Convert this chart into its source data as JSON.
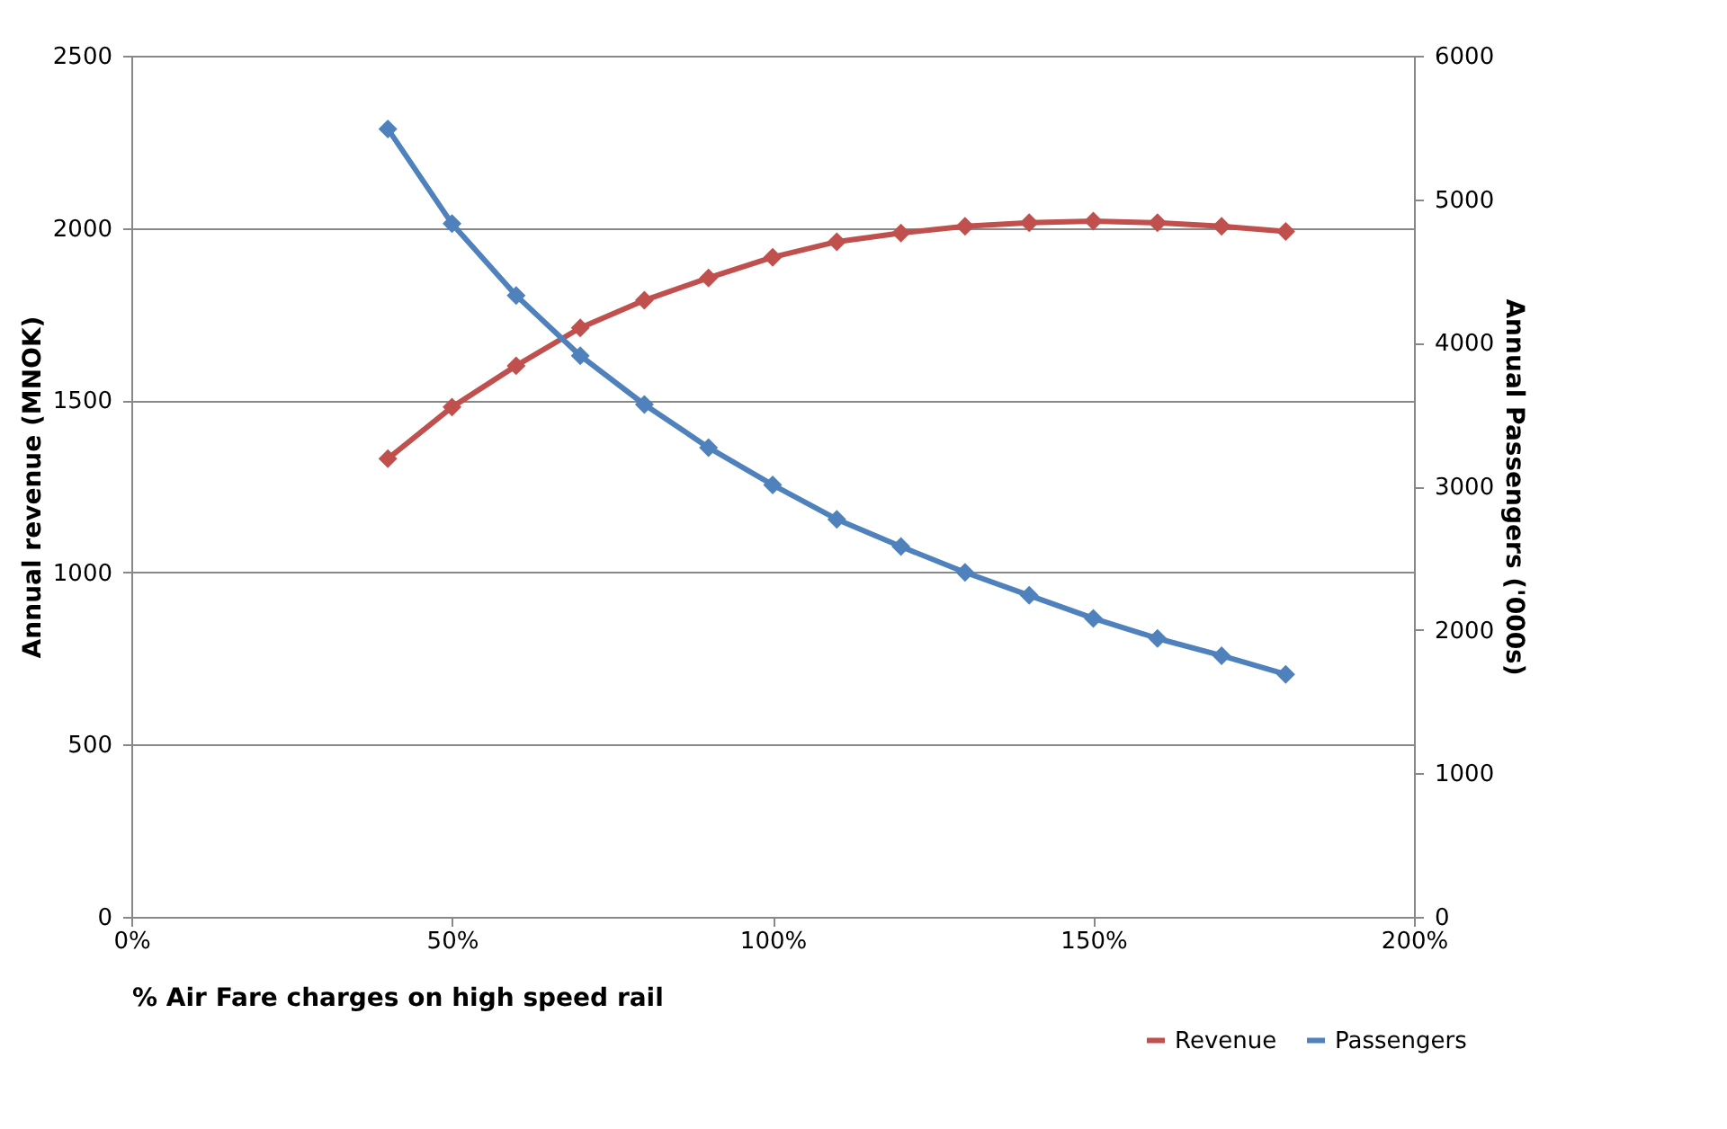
{
  "chart_data": {
    "type": "line",
    "xlabel": "% Air Fare charges on high speed rail",
    "ylabel": "Annual revenue (MNOK)",
    "y2label": "Annual Passengers ('000s)",
    "x": [
      40,
      50,
      60,
      70,
      80,
      90,
      100,
      110,
      120,
      130,
      140,
      150,
      160,
      170,
      180
    ],
    "series": [
      {
        "name": "Revenue",
        "color": "#c0504d",
        "values": [
          1330,
          1480,
          1600,
          1710,
          1790,
          1855,
          1915,
          1960,
          1985,
          2005,
          2015,
          2020,
          2015,
          2005,
          1990
        ]
      },
      {
        "name": "Passengers",
        "color": "#4f81bd",
        "axis": "y2",
        "values": [
          5490,
          4830,
          4330,
          3910,
          3570,
          3270,
          3010,
          2770,
          2580,
          2400,
          2240,
          2080,
          1940,
          1820,
          1690
        ]
      }
    ],
    "xlim": [
      0,
      200
    ],
    "xticks": [
      {
        "value": 0,
        "label": "0%"
      },
      {
        "value": 50,
        "label": "50%"
      },
      {
        "value": 100,
        "label": "100%"
      },
      {
        "value": 150,
        "label": "150%"
      },
      {
        "value": 200,
        "label": "200%"
      }
    ],
    "ylim": [
      0,
      2500
    ],
    "yticks": [
      0,
      500,
      1000,
      1500,
      2000,
      2500
    ],
    "y2lim": [
      0,
      6000
    ],
    "y2ticks": [
      0,
      1000,
      2000,
      3000,
      4000,
      5000,
      6000
    ],
    "grid": "y",
    "legend": "bottom right",
    "marker": "diamond"
  }
}
